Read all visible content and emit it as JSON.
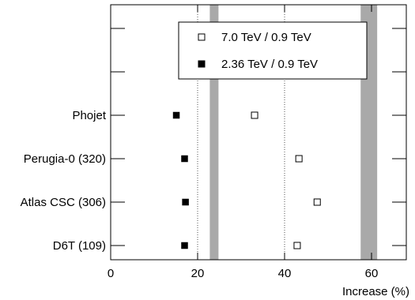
{
  "chart_data": {
    "type": "scatter",
    "title": "",
    "xlabel": "Increase (%)",
    "ylabel": "",
    "xlim": [
      0,
      68
    ],
    "xticks": [
      0,
      20,
      40,
      60
    ],
    "categories": [
      "D6T (109)",
      "Atlas CSC (306)",
      "Perugia-0 (320)",
      "Phojet"
    ],
    "series": [
      {
        "name": "7.0 TeV / 0.9 TeV",
        "marker": "open-square",
        "values": [
          42.9,
          47.5,
          43.3,
          33.1
        ]
      },
      {
        "name": "2.36 TeV / 0.9 TeV",
        "marker": "filled-square",
        "values": [
          17.0,
          17.2,
          17.0,
          15.1
        ]
      }
    ],
    "bands": [
      {
        "from": 22.8,
        "to": 24.8
      },
      {
        "from": 57.5,
        "to": 61.3
      }
    ],
    "reference_lines": [
      20,
      40
    ],
    "legend_position": "top-center",
    "grid": false
  }
}
